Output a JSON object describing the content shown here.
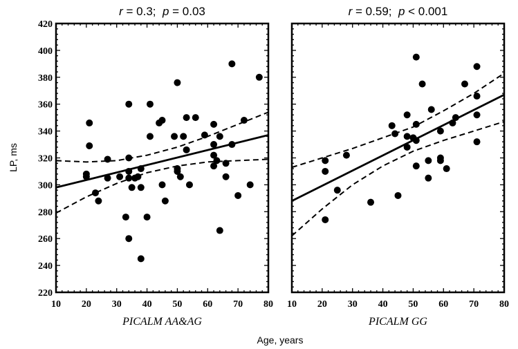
{
  "chart_data": [
    {
      "type": "scatter",
      "title": {
        "r_label": "r",
        "r_text": " = 0.3;  ",
        "p_label": "p",
        "p_text": " = 0.03"
      },
      "panel_label": "PICALM AA&AG",
      "xlabel": "Age, years",
      "ylabel": "LP, ms",
      "xlim": [
        10,
        80
      ],
      "ylim": [
        220,
        420
      ],
      "xticks": [
        10,
        20,
        30,
        40,
        50,
        60,
        70,
        80
      ],
      "yticks": [
        220,
        240,
        260,
        280,
        300,
        320,
        340,
        360,
        380,
        400,
        420
      ],
      "grid": false,
      "points": [
        [
          21,
          346
        ],
        [
          21,
          329
        ],
        [
          20,
          308
        ],
        [
          20,
          306
        ],
        [
          23,
          294
        ],
        [
          24,
          288
        ],
        [
          27,
          305
        ],
        [
          27,
          319
        ],
        [
          31,
          306
        ],
        [
          33,
          276
        ],
        [
          34,
          260
        ],
        [
          34,
          360
        ],
        [
          34,
          320
        ],
        [
          34,
          310
        ],
        [
          34,
          305
        ],
        [
          35,
          298
        ],
        [
          36,
          305
        ],
        [
          37,
          306
        ],
        [
          38,
          312
        ],
        [
          38,
          298
        ],
        [
          38,
          245
        ],
        [
          40,
          276
        ],
        [
          41,
          360
        ],
        [
          41,
          336
        ],
        [
          44,
          346
        ],
        [
          45,
          348
        ],
        [
          45,
          300
        ],
        [
          46,
          288
        ],
        [
          49,
          336
        ],
        [
          50,
          376
        ],
        [
          50,
          312
        ],
        [
          50,
          310
        ],
        [
          51,
          306
        ],
        [
          52,
          336
        ],
        [
          53,
          326
        ],
        [
          53,
          350
        ],
        [
          54,
          300
        ],
        [
          56,
          350
        ],
        [
          59,
          337
        ],
        [
          62,
          345
        ],
        [
          62,
          330
        ],
        [
          62,
          322
        ],
        [
          62,
          314
        ],
        [
          63,
          318
        ],
        [
          64,
          266
        ],
        [
          64,
          336
        ],
        [
          66,
          316
        ],
        [
          66,
          306
        ],
        [
          68,
          390
        ],
        [
          68,
          330
        ],
        [
          70,
          292
        ],
        [
          72,
          348
        ],
        [
          74,
          300
        ],
        [
          77,
          380
        ]
      ],
      "fit": [
        [
          10,
          298
        ],
        [
          80,
          337
        ]
      ],
      "ci_upper": [
        [
          10,
          318
        ],
        [
          20,
          317
        ],
        [
          30,
          318
        ],
        [
          40,
          322
        ],
        [
          50,
          328
        ],
        [
          60,
          336
        ],
        [
          70,
          345
        ],
        [
          80,
          354
        ]
      ],
      "ci_lower": [
        [
          10,
          279
        ],
        [
          20,
          291
        ],
        [
          30,
          301
        ],
        [
          40,
          309
        ],
        [
          50,
          314
        ],
        [
          60,
          317
        ],
        [
          70,
          318
        ],
        [
          80,
          319
        ]
      ]
    },
    {
      "type": "scatter",
      "title": {
        "r_label": "r",
        "r_text": " = 0.59;  ",
        "p_label": "p",
        "p_text": " < 0.001"
      },
      "panel_label": "PICALM GG",
      "xlabel": "Age, years",
      "ylabel": "LP, ms",
      "xlim": [
        10,
        80
      ],
      "ylim": [
        220,
        420
      ],
      "xticks": [
        10,
        20,
        30,
        40,
        50,
        60,
        70,
        80
      ],
      "yticks": [
        220,
        240,
        260,
        280,
        300,
        320,
        340,
        360,
        380,
        400,
        420
      ],
      "grid": false,
      "points": [
        [
          21,
          318
        ],
        [
          21,
          310
        ],
        [
          21,
          274
        ],
        [
          25,
          296
        ],
        [
          28,
          322
        ],
        [
          36,
          287
        ],
        [
          43,
          344
        ],
        [
          44,
          338
        ],
        [
          45,
          292
        ],
        [
          48,
          352
        ],
        [
          48,
          336
        ],
        [
          48,
          328
        ],
        [
          50,
          335
        ],
        [
          51,
          395
        ],
        [
          51,
          345
        ],
        [
          51,
          333
        ],
        [
          51,
          314
        ],
        [
          53,
          375
        ],
        [
          55,
          318
        ],
        [
          55,
          305
        ],
        [
          56,
          356
        ],
        [
          59,
          340
        ],
        [
          59,
          320
        ],
        [
          59,
          318
        ],
        [
          61,
          312
        ],
        [
          63,
          346
        ],
        [
          64,
          350
        ],
        [
          67,
          375
        ],
        [
          71,
          388
        ],
        [
          71,
          366
        ],
        [
          71,
          352
        ],
        [
          71,
          332
        ]
      ],
      "fit": [
        [
          10,
          288
        ],
        [
          80,
          367
        ]
      ],
      "ci_upper": [
        [
          10,
          313
        ],
        [
          20,
          320
        ],
        [
          30,
          327
        ],
        [
          40,
          335
        ],
        [
          50,
          343
        ],
        [
          60,
          355
        ],
        [
          70,
          368
        ],
        [
          80,
          383
        ]
      ],
      "ci_lower": [
        [
          10,
          262
        ],
        [
          20,
          282
        ],
        [
          30,
          300
        ],
        [
          40,
          314
        ],
        [
          50,
          325
        ],
        [
          60,
          333
        ],
        [
          70,
          340
        ],
        [
          80,
          347
        ]
      ]
    }
  ]
}
